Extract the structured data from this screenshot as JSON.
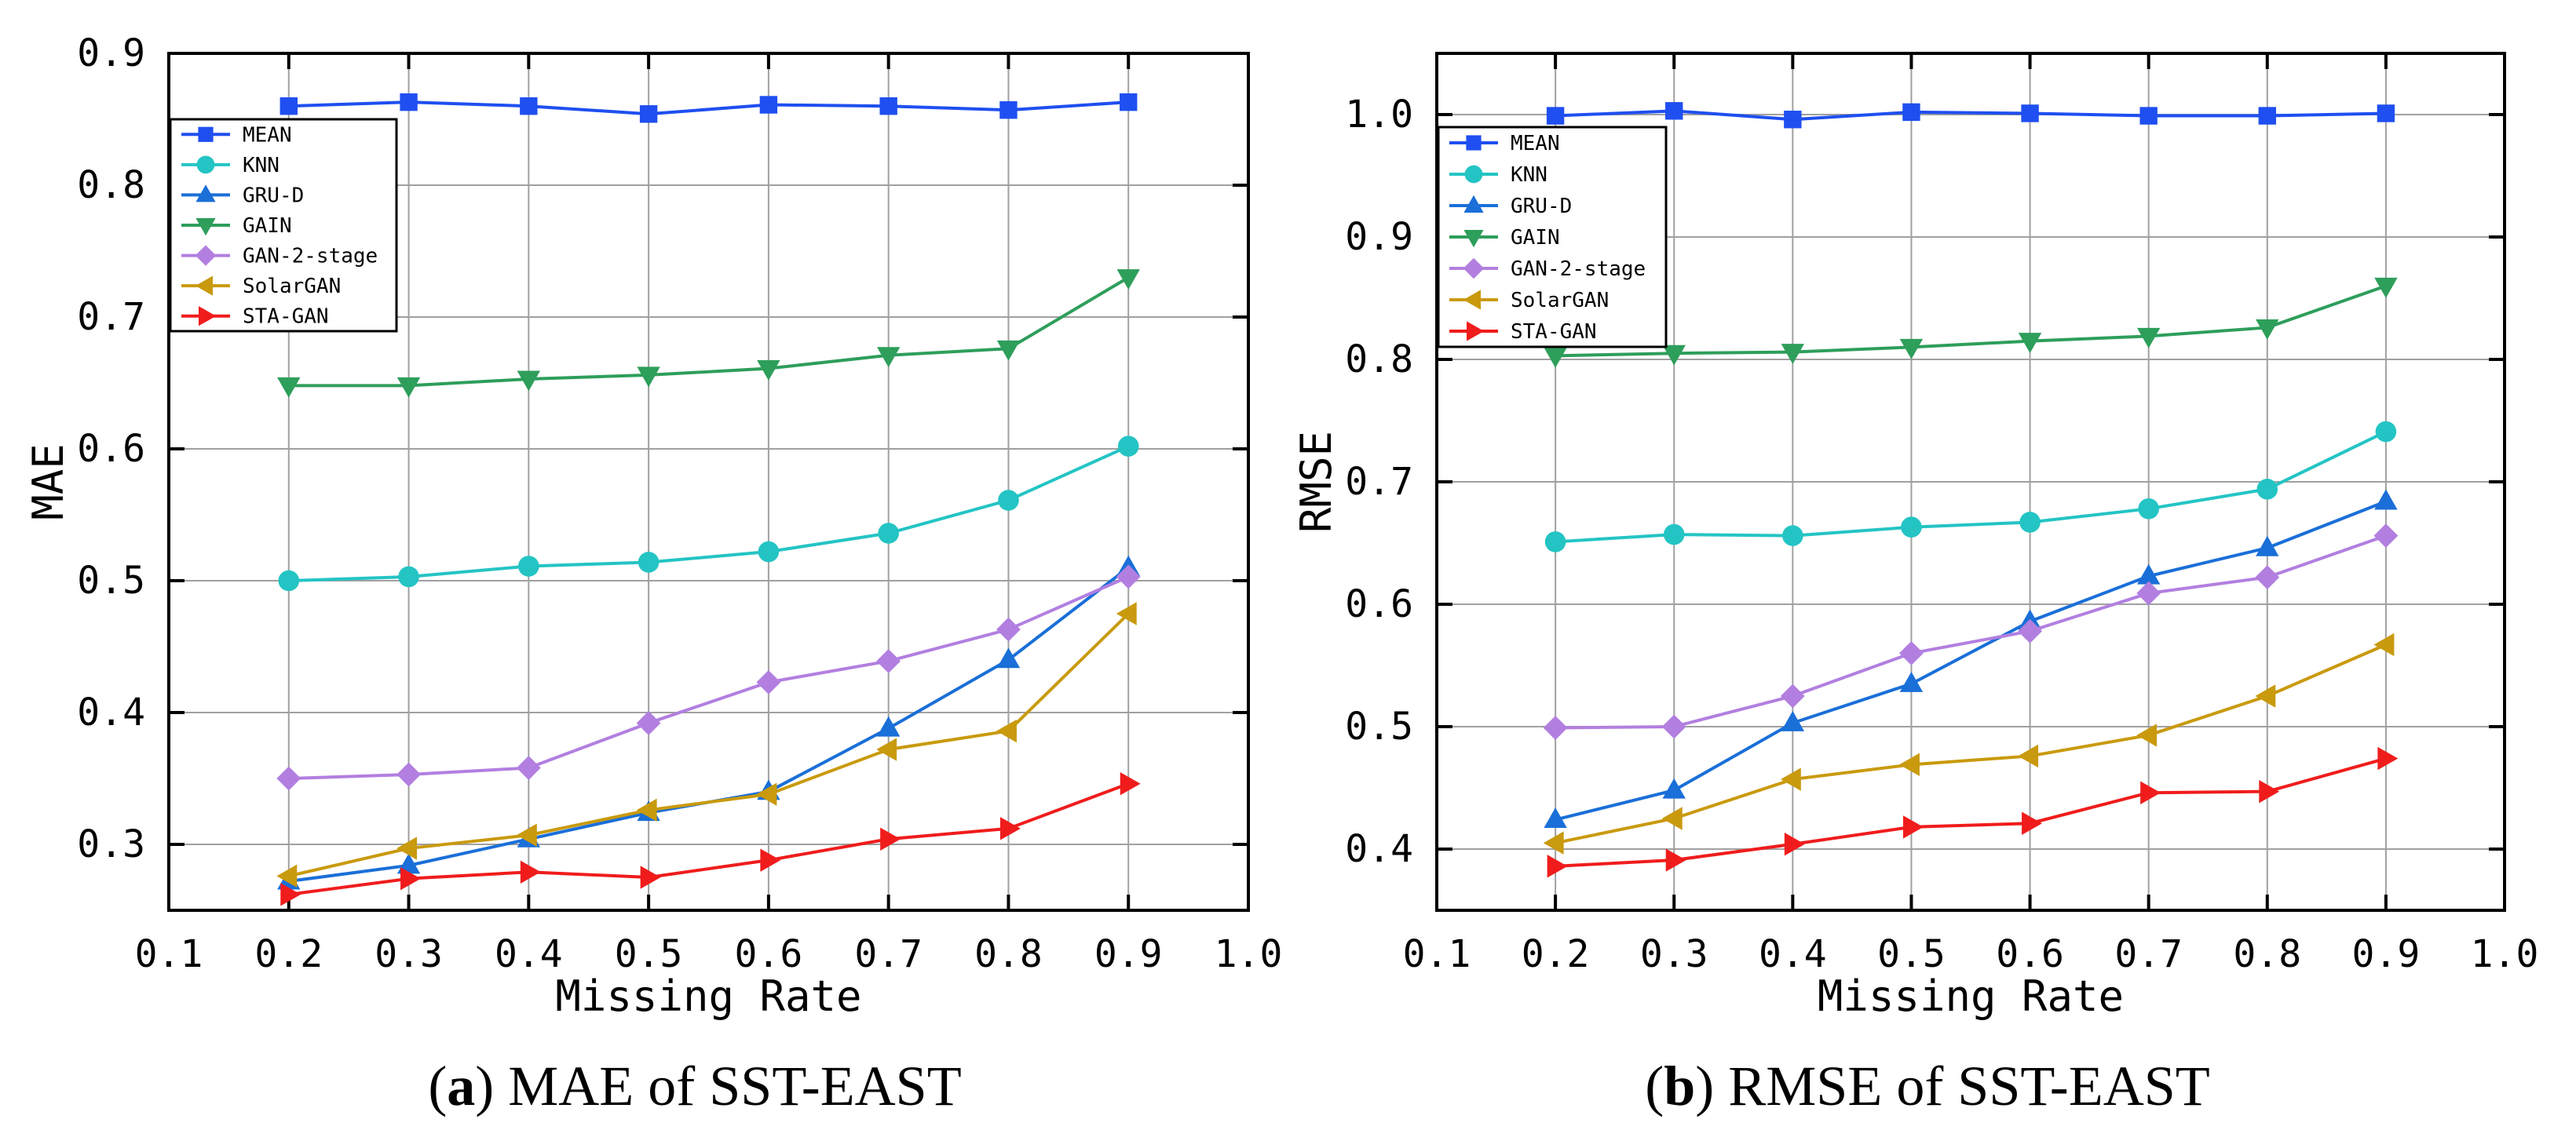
{
  "chart_data": [
    {
      "type": "line",
      "caption_letter": "a",
      "caption_text": " MAE of SST-EAST",
      "xlabel": "Missing Rate",
      "ylabel": "MAE",
      "xlim": [
        0.1,
        1.0
      ],
      "ylim": [
        0.25,
        0.9
      ],
      "xticks": [
        "0.1",
        "0.2",
        "0.3",
        "0.4",
        "0.5",
        "0.6",
        "0.7",
        "0.8",
        "0.9",
        "1.0"
      ],
      "yticks": [
        "0.3",
        "0.4",
        "0.5",
        "0.6",
        "0.7",
        "0.8",
        "0.9"
      ],
      "grid": true,
      "legend_position": "top-left",
      "x": [
        0.2,
        0.3,
        0.4,
        0.5,
        0.6,
        0.7,
        0.8,
        0.9
      ],
      "series": [
        {
          "name": "MEAN",
          "marker": "square",
          "color": "#1f4ff0",
          "values": [
            0.86,
            0.863,
            0.86,
            0.854,
            0.861,
            0.86,
            0.857,
            0.863
          ]
        },
        {
          "name": "KNN",
          "marker": "circle",
          "color": "#24c4c4",
          "values": [
            0.5,
            0.503,
            0.511,
            0.514,
            0.522,
            0.536,
            0.561,
            0.602
          ]
        },
        {
          "name": "GRU-D",
          "marker": "triangle-up",
          "color": "#1a6fd8",
          "values": [
            0.272,
            0.284,
            0.304,
            0.324,
            0.34,
            0.388,
            0.44,
            0.51
          ]
        },
        {
          "name": "GAIN",
          "marker": "triangle-down",
          "color": "#2e9e5b",
          "values": [
            0.648,
            0.648,
            0.653,
            0.656,
            0.661,
            0.671,
            0.676,
            0.73
          ]
        },
        {
          "name": "GAN-2-stage",
          "marker": "diamond",
          "color": "#b27fe0",
          "values": [
            0.35,
            0.353,
            0.358,
            0.392,
            0.423,
            0.439,
            0.463,
            0.503
          ]
        },
        {
          "name": "SolarGAN",
          "marker": "triangle-left",
          "color": "#c99a0e",
          "values": [
            0.276,
            0.297,
            0.307,
            0.326,
            0.338,
            0.372,
            0.386,
            0.475
          ]
        },
        {
          "name": "STA-GAN",
          "marker": "triangle-right",
          "color": "#f01c1c",
          "values": [
            0.262,
            0.274,
            0.279,
            0.275,
            0.288,
            0.304,
            0.312,
            0.346
          ]
        }
      ]
    },
    {
      "type": "line",
      "caption_letter": "b",
      "caption_text": " RMSE of SST-EAST",
      "xlabel": "Missing Rate",
      "ylabel": "RMSE",
      "xlim": [
        0.1,
        1.0
      ],
      "ylim": [
        0.35,
        1.05
      ],
      "xticks": [
        "0.1",
        "0.2",
        "0.3",
        "0.4",
        "0.5",
        "0.6",
        "0.7",
        "0.8",
        "0.9",
        "1.0"
      ],
      "yticks": [
        "0.4",
        "0.5",
        "0.6",
        "0.7",
        "0.8",
        "0.9",
        "1.0"
      ],
      "grid": true,
      "legend_position": "top-left",
      "x": [
        0.2,
        0.3,
        0.4,
        0.5,
        0.6,
        0.7,
        0.8,
        0.9
      ],
      "series": [
        {
          "name": "MEAN",
          "marker": "square",
          "color": "#1f4ff0",
          "values": [
            0.999,
            1.003,
            0.996,
            1.002,
            1.001,
            0.999,
            0.999,
            1.001
          ]
        },
        {
          "name": "KNN",
          "marker": "circle",
          "color": "#24c4c4",
          "values": [
            0.651,
            0.657,
            0.656,
            0.663,
            0.667,
            0.678,
            0.694,
            0.741
          ]
        },
        {
          "name": "GRU-D",
          "marker": "triangle-up",
          "color": "#1a6fd8",
          "values": [
            0.424,
            0.448,
            0.503,
            0.535,
            0.586,
            0.623,
            0.646,
            0.684
          ]
        },
        {
          "name": "GAIN",
          "marker": "triangle-down",
          "color": "#2e9e5b",
          "values": [
            0.803,
            0.805,
            0.806,
            0.81,
            0.815,
            0.819,
            0.826,
            0.86
          ]
        },
        {
          "name": "GAN-2-stage",
          "marker": "diamond",
          "color": "#b27fe0",
          "values": [
            0.499,
            0.5,
            0.525,
            0.56,
            0.578,
            0.609,
            0.622,
            0.656
          ]
        },
        {
          "name": "SolarGAN",
          "marker": "triangle-left",
          "color": "#c99a0e",
          "values": [
            0.405,
            0.425,
            0.457,
            0.469,
            0.476,
            0.493,
            0.525,
            0.567
          ]
        },
        {
          "name": "STA-GAN",
          "marker": "triangle-right",
          "color": "#f01c1c",
          "values": [
            0.386,
            0.391,
            0.404,
            0.418,
            0.421,
            0.446,
            0.447,
            0.474
          ]
        }
      ]
    }
  ]
}
